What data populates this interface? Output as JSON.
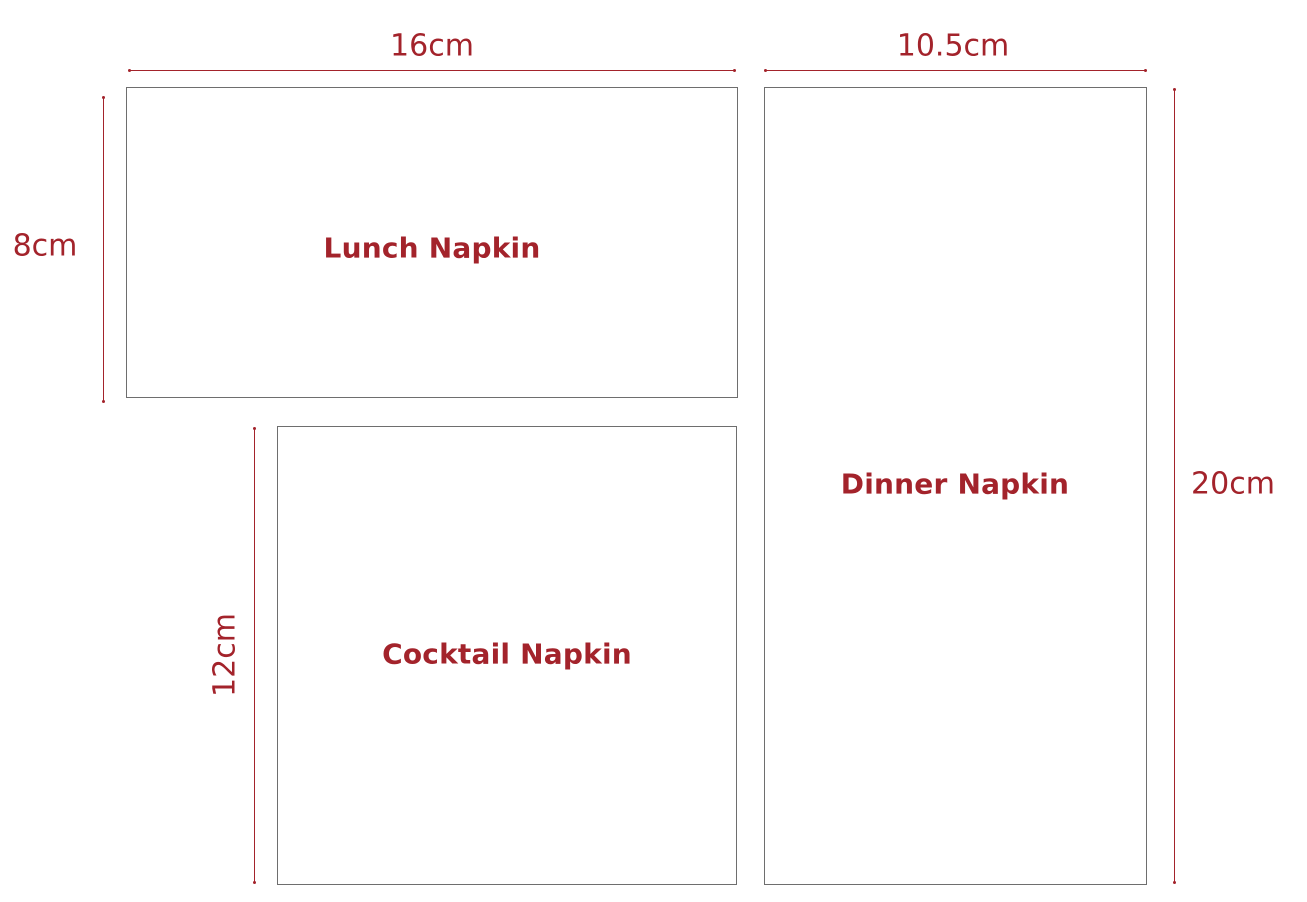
{
  "colors": {
    "accent": "#a3232b",
    "box_border": "#6e6e6e",
    "background": "#ffffff"
  },
  "napkins": {
    "lunch": {
      "label": "Lunch Napkin"
    },
    "cocktail": {
      "label": "Cocktail Napkin"
    },
    "dinner": {
      "label": "Dinner Napkin"
    }
  },
  "dimensions": {
    "lunch_width": "16cm",
    "lunch_height": "8cm",
    "cocktail_height": "12cm",
    "dinner_width": "10.5cm",
    "dinner_height": "20cm"
  }
}
